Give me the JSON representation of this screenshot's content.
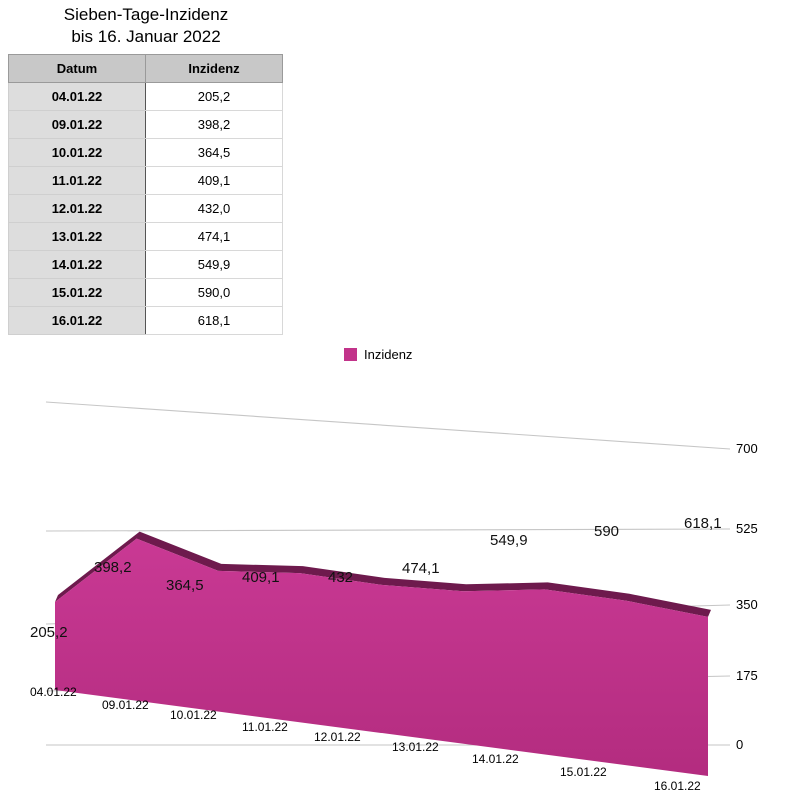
{
  "title_line1": "Sieben-Tage-Inzidenz",
  "title_line2": "bis 16. Januar 2022",
  "table": {
    "headers": [
      "Datum",
      "Inzidenz"
    ],
    "rows": [
      [
        "04.01.22",
        "205,2"
      ],
      [
        "09.01.22",
        "398,2"
      ],
      [
        "10.01.22",
        "364,5"
      ],
      [
        "11.01.22",
        "409,1"
      ],
      [
        "12.01.22",
        "432,0"
      ],
      [
        "13.01.22",
        "474,1"
      ],
      [
        "14.01.22",
        "549,9"
      ],
      [
        "15.01.22",
        "590,0"
      ],
      [
        "16.01.22",
        "618,1"
      ]
    ]
  },
  "chart_data": {
    "type": "area",
    "perspective": "3d",
    "categories": [
      "04.01.22",
      "09.01.22",
      "10.01.22",
      "11.01.22",
      "12.01.22",
      "13.01.22",
      "14.01.22",
      "15.01.22",
      "16.01.22"
    ],
    "series": [
      {
        "name": "Inzidenz",
        "values": [
          205.2,
          398.2,
          364.5,
          409.1,
          432,
          474.1,
          549.9,
          590,
          618.1
        ],
        "data_labels": [
          "205,2",
          "398,2",
          "364,5",
          "409,1",
          "432",
          "474,1",
          "549,9",
          "590",
          "618,1"
        ],
        "color": "#c2338a"
      }
    ],
    "yticks": [
      "0",
      "175",
      "350",
      "525",
      "700"
    ],
    "ylim": [
      0,
      700
    ],
    "grid": true,
    "legend_position": "top-center"
  }
}
